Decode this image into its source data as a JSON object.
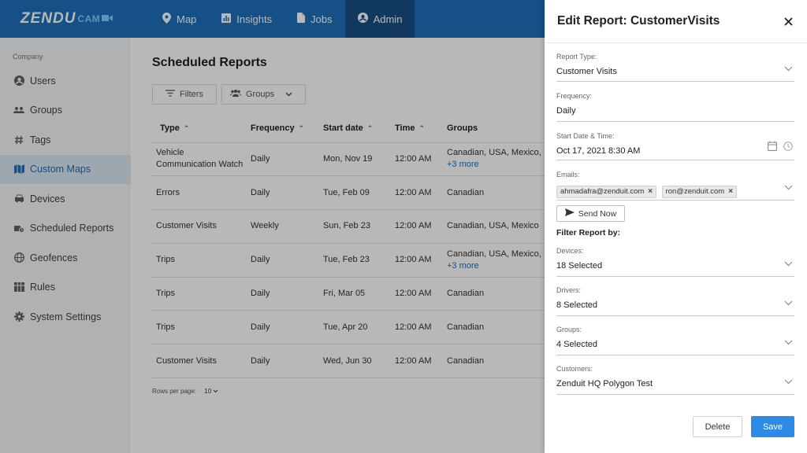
{
  "app": {
    "logo_main": "ZENDU",
    "logo_sub": "CAM"
  },
  "nav": {
    "tabs": [
      {
        "label": "Map",
        "icon": "map-pin-icon"
      },
      {
        "label": "Insights",
        "icon": "chart-icon"
      },
      {
        "label": "Jobs",
        "icon": "document-icon"
      },
      {
        "label": "Admin",
        "icon": "account-icon",
        "active": true
      }
    ]
  },
  "sidebar": {
    "heading": "Company",
    "items": [
      {
        "label": "Users",
        "icon": "person-icon"
      },
      {
        "label": "Groups",
        "icon": "group-icon"
      },
      {
        "label": "Tags",
        "icon": "hash-icon"
      },
      {
        "label": "Custom Maps",
        "icon": "map-icon",
        "active": true
      },
      {
        "label": "Devices",
        "icon": "car-icon"
      },
      {
        "label": "Scheduled Reports",
        "icon": "report-icon"
      },
      {
        "label": "Geofences",
        "icon": "globe-icon"
      },
      {
        "label": "Rules",
        "icon": "rules-icon"
      },
      {
        "label": "System Settings",
        "icon": "gear-icon"
      }
    ]
  },
  "main": {
    "title": "Scheduled Reports",
    "filters_label": "Filters",
    "groups_label": "Groups",
    "columns": [
      "Type",
      "Frequency",
      "Start date",
      "Time",
      "Groups"
    ],
    "rows": [
      {
        "type": "Vehicle Communication Watch",
        "frequency": "Daily",
        "start": "Mon, Nov 19",
        "time": "12:00 AM",
        "groups": "Canadian, USA, Mexico,",
        "more": "+3 more"
      },
      {
        "type": "Errors",
        "frequency": "Daily",
        "start": "Tue, Feb 09",
        "time": "12:00 AM",
        "groups": "Canadian",
        "more": ""
      },
      {
        "type": "Customer Visits",
        "frequency": "Weekly",
        "start": "Sun, Feb 23",
        "time": "12:00 AM",
        "groups": "Canadian, USA, Mexico",
        "more": ""
      },
      {
        "type": "Trips",
        "frequency": "Daily",
        "start": "Tue, Feb 23",
        "time": "12:00 AM",
        "groups": "Canadian, USA, Mexico,",
        "more": "+3 more"
      },
      {
        "type": "Trips",
        "frequency": "Daily",
        "start": "Fri, Mar 05",
        "time": "12:00 AM",
        "groups": "Canadian",
        "more": ""
      },
      {
        "type": "Trips",
        "frequency": "Daily",
        "start": "Tue, Apr 20",
        "time": "12:00 AM",
        "groups": "Canadian",
        "more": ""
      },
      {
        "type": "Customer Visits",
        "frequency": "Daily",
        "start": "Wed, Jun 30",
        "time": "12:00 AM",
        "groups": "Canadian",
        "more": ""
      }
    ],
    "rows_per_page_label": "Rows per page:",
    "rows_per_page_value": "10"
  },
  "drawer": {
    "title": "Edit Report: CustomerVisits",
    "report_type_label": "Report Type:",
    "report_type_value": "Customer Visits",
    "frequency_label": "Frequency:",
    "frequency_value": "Daily",
    "start_label": "Start Date & Time:",
    "start_value": "Oct 17, 2021 8:30 AM",
    "emails_label": "Emails:",
    "emails": [
      "ahmadafra@zenduit.com",
      "ron@zenduit.com"
    ],
    "send_now_label": "Send Now",
    "filter_heading": "Filter Report by:",
    "devices_label": "Devices:",
    "devices_value": "18 Selected",
    "drivers_label": "Drivers:",
    "drivers_value": "8 Selected",
    "groups_label": "Groups:",
    "groups_value": "4 Selected",
    "customers_label": "Customers:",
    "customers_value": "Zenduit HQ Polygon Test",
    "delete_label": "Delete",
    "save_label": "Save"
  },
  "colors": {
    "topbar": "#1e6fba",
    "topbar_active": "#184e85",
    "primary_button": "#2d8ae6",
    "sidebar_bg": "#f4f5f7"
  }
}
